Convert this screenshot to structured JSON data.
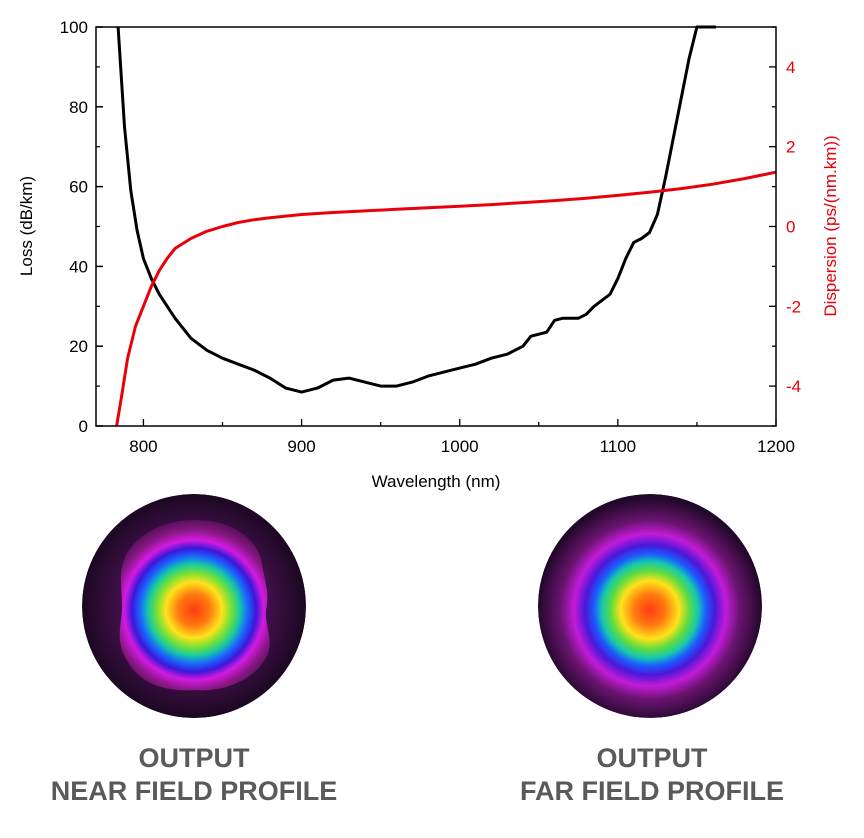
{
  "chart_data": {
    "type": "line",
    "xlabel": "Wavelength (nm)",
    "xlim": [
      770,
      1200
    ],
    "xticks": [
      800,
      900,
      1000,
      1100,
      1200
    ],
    "y_left": {
      "label": "Loss (dB/km)",
      "lim": [
        0,
        100
      ],
      "ticks": [
        0,
        20,
        40,
        60,
        80,
        100
      ],
      "color": "#000000"
    },
    "y_right": {
      "label": "Dispersion (ps/(nm.km))",
      "lim": [
        -5,
        5
      ],
      "ticks": [
        -4,
        -2,
        0,
        2,
        4
      ],
      "color": "#e8000b"
    },
    "series": [
      {
        "name": "Loss",
        "axis": "left",
        "color": "#000000",
        "x": [
          784,
          788,
          792,
          796,
          800,
          805,
          810,
          815,
          820,
          830,
          840,
          850,
          860,
          870,
          880,
          890,
          900,
          910,
          920,
          930,
          940,
          950,
          960,
          970,
          980,
          990,
          1000,
          1010,
          1020,
          1030,
          1040,
          1045,
          1050,
          1055,
          1060,
          1065,
          1070,
          1075,
          1080,
          1085,
          1090,
          1095,
          1100,
          1105,
          1110,
          1115,
          1120,
          1125,
          1130,
          1135,
          1140,
          1145,
          1150,
          1155,
          1160,
          1162
        ],
        "values": [
          100,
          75,
          59,
          49,
          42,
          37,
          33,
          30,
          27,
          22,
          19,
          17,
          15.5,
          14,
          12,
          9.5,
          8.5,
          9.5,
          11.5,
          12,
          11,
          10,
          10,
          11,
          12.5,
          13.5,
          14.5,
          15.5,
          17,
          18,
          20,
          22.5,
          23,
          23.5,
          26.5,
          27,
          27,
          27,
          28,
          30,
          31.5,
          33,
          37,
          42,
          46,
          47,
          48.5,
          53,
          62,
          72,
          82,
          92,
          100,
          100,
          100,
          100
        ]
      },
      {
        "name": "Dispersion",
        "axis": "right",
        "color": "#e8000b",
        "x": [
          783,
          786,
          790,
          795,
          800,
          805,
          810,
          815,
          820,
          830,
          840,
          850,
          860,
          870,
          880,
          890,
          900,
          920,
          940,
          960,
          980,
          1000,
          1020,
          1040,
          1060,
          1080,
          1100,
          1120,
          1140,
          1160,
          1180,
          1200
        ],
        "values": [
          -5,
          -4.3,
          -3.3,
          -2.5,
          -2.0,
          -1.5,
          -1.1,
          -0.8,
          -0.55,
          -0.3,
          -0.12,
          0.0,
          0.1,
          0.17,
          0.22,
          0.26,
          0.3,
          0.35,
          0.39,
          0.43,
          0.47,
          0.51,
          0.55,
          0.6,
          0.65,
          0.71,
          0.78,
          0.86,
          0.95,
          1.06,
          1.2,
          1.36
        ]
      }
    ]
  },
  "profiles": [
    {
      "line1": "OUTPUT",
      "line2": "NEAR FIELD PROFILE"
    },
    {
      "line1": "OUTPUT",
      "line2": "FAR FIELD PROFILE"
    }
  ]
}
